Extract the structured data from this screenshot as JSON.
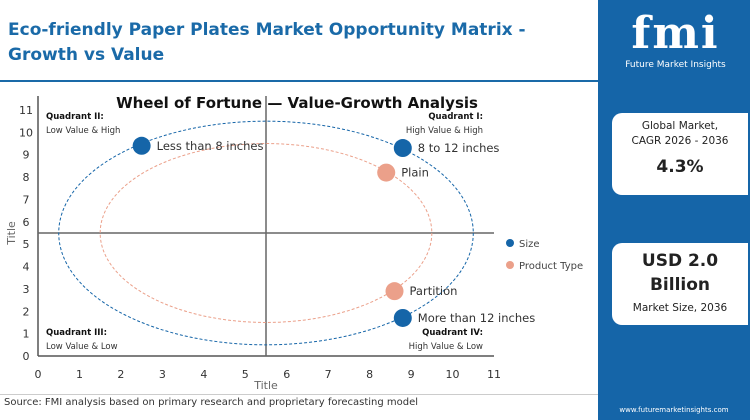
{
  "header": {
    "title": "Eco-friendly Paper Plates Market Opportunity Matrix - Growth vs Value"
  },
  "sidebar": {
    "logo_text": "fmi",
    "logo_sub": "Future Market Insights",
    "cagr_label_1": "Global Market,",
    "cagr_label_2": "CAGR 2026 - 2036",
    "cagr_value": "4.3%",
    "size_value_1": "USD 2.0",
    "size_value_2": "Billion",
    "size_label": "Market Size, 2036",
    "url": "www.futuremarketinsights.com"
  },
  "footer": {
    "source": "Source: FMI analysis based on primary research and proprietary forecasting model"
  },
  "chart_data": {
    "type": "scatter",
    "title": "Wheel of Fortune — Value-Growth Analysis",
    "xlabel": "Title",
    "ylabel": "Title",
    "xlim": [
      0,
      11
    ],
    "ylim": [
      0,
      11
    ],
    "xticks": [
      0,
      1,
      2,
      3,
      4,
      5,
      6,
      7,
      8,
      9,
      10,
      11
    ],
    "yticks": [
      0,
      1,
      2,
      3,
      4,
      5,
      6,
      7,
      8,
      9,
      10,
      11
    ],
    "dividers": {
      "x": 5.5,
      "y": 5.5
    },
    "quadrants": [
      {
        "name": "Quadrant I:",
        "desc": "High Value & High",
        "pos": "top-right"
      },
      {
        "name": "Quadrant II:",
        "desc": "Low Value & High",
        "pos": "top-left"
      },
      {
        "name": "Quadrant III:",
        "desc": "Low Value & Low",
        "pos": "bottom-left"
      },
      {
        "name": "Quadrant IV:",
        "desc": "High Value & Low",
        "pos": "bottom-right"
      }
    ],
    "legend_position": "right",
    "series": [
      {
        "name": "Size",
        "color": "#1565a8",
        "ellipse": {
          "cx": 5.5,
          "cy": 5.5,
          "rx": 5,
          "ry": 5
        },
        "points": [
          {
            "label": "Less than 8 inches",
            "x": 2.5,
            "y": 9.4
          },
          {
            "label": "8 to 12 inches",
            "x": 8.8,
            "y": 9.3
          },
          {
            "label": "More than 12 inches",
            "x": 8.8,
            "y": 1.7
          }
        ]
      },
      {
        "name": "Product Type",
        "color": "#eba08a",
        "ellipse": {
          "cx": 5.5,
          "cy": 5.5,
          "rx": 4,
          "ry": 4
        },
        "points": [
          {
            "label": "Plain",
            "x": 8.4,
            "y": 8.2
          },
          {
            "label": "Partition",
            "x": 8.6,
            "y": 2.9
          }
        ]
      }
    ]
  }
}
